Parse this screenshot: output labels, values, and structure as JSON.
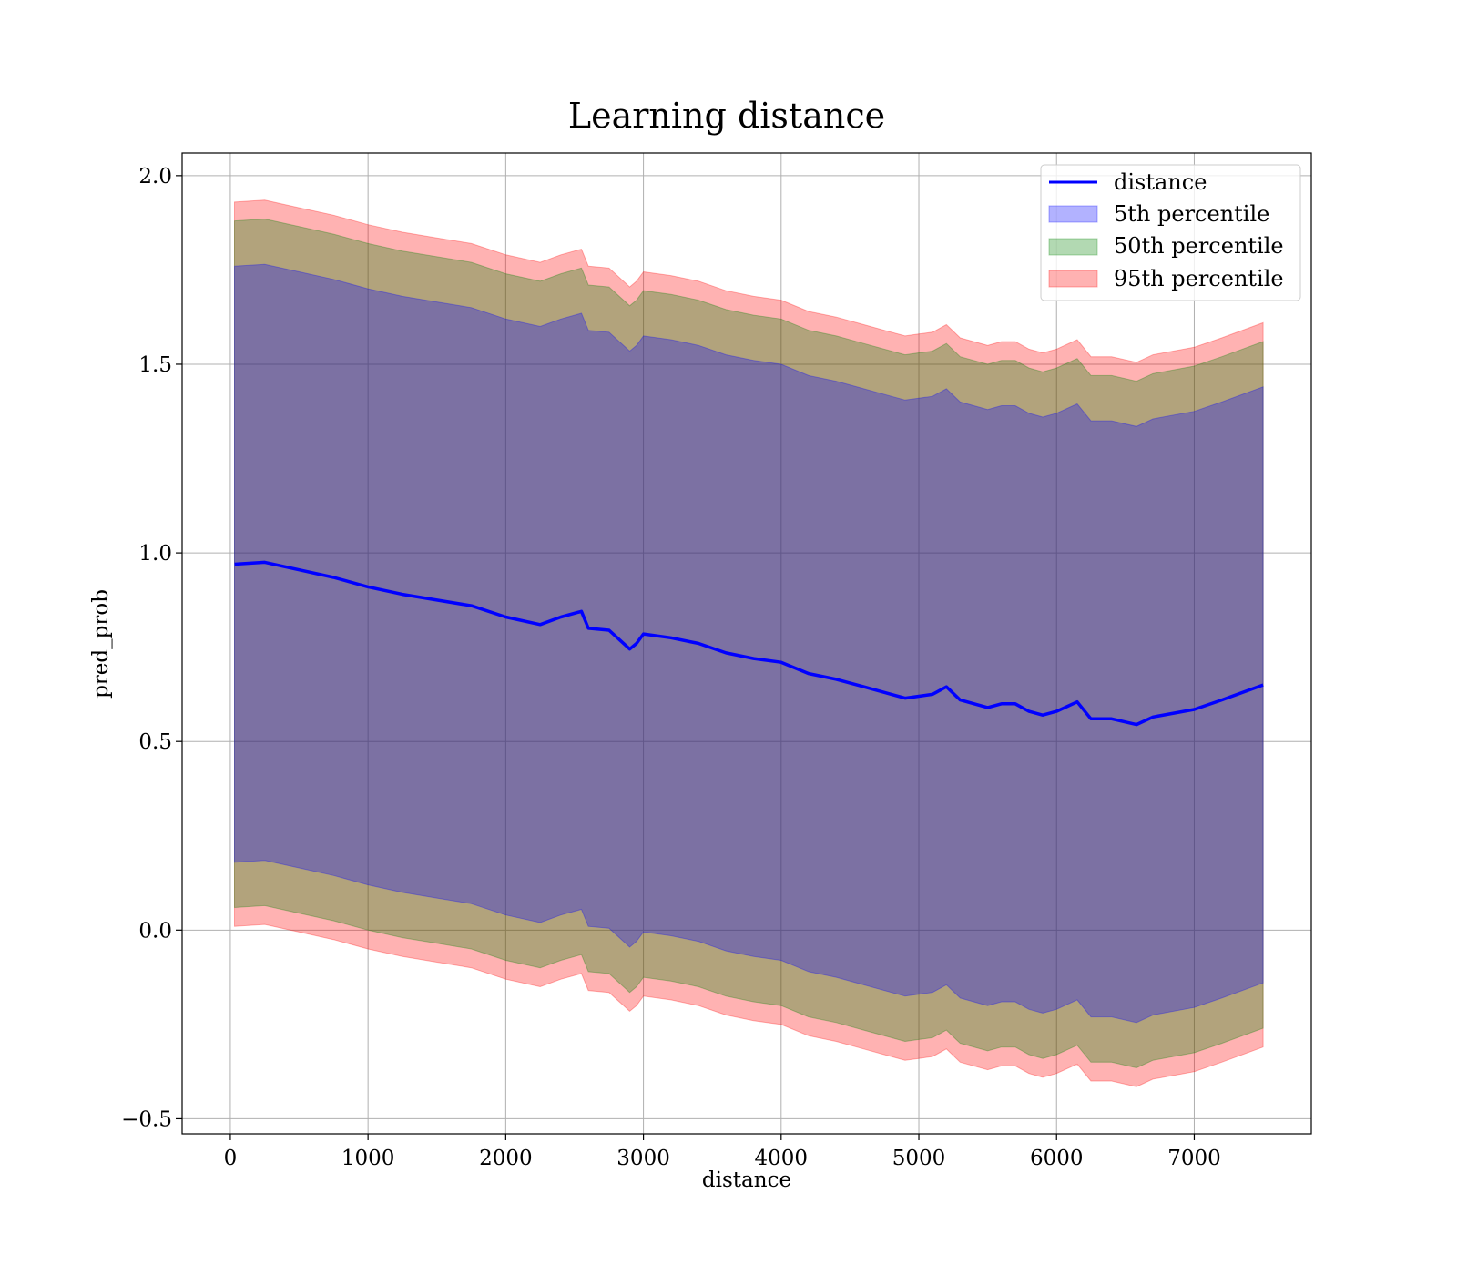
{
  "chart_data": {
    "type": "area",
    "title": "Learning distance",
    "xlabel": "distance",
    "ylabel": "pred_prob",
    "xlim": [
      -350,
      7850
    ],
    "ylim": [
      -0.54,
      2.06
    ],
    "xticks": [
      0,
      1000,
      2000,
      3000,
      4000,
      5000,
      6000,
      7000
    ],
    "yticks": [
      -0.5,
      0.0,
      0.5,
      1.0,
      1.5,
      2.0
    ],
    "ytick_labels": [
      "−0.5",
      "0.0",
      "0.5",
      "1.0",
      "1.5",
      "2.0"
    ],
    "grid": true,
    "legend_position": "top-right",
    "colors": {
      "line": "#0000ff",
      "band_5": "#0000ff",
      "band_50": "#008000",
      "band_95": "#ff0000",
      "band_alpha": 0.3
    },
    "x": [
      30,
      250,
      500,
      750,
      1000,
      1250,
      1500,
      1750,
      2000,
      2250,
      2400,
      2550,
      2600,
      2750,
      2900,
      2950,
      3000,
      3200,
      3400,
      3600,
      3800,
      4000,
      4200,
      4400,
      4600,
      4800,
      4900,
      5000,
      5100,
      5200,
      5300,
      5500,
      5600,
      5700,
      5800,
      5900,
      6000,
      6150,
      6250,
      6400,
      6580,
      6700,
      7000,
      7200,
      7500
    ],
    "series": [
      {
        "name": "distance",
        "kind": "line",
        "y": [
          0.97,
          0.975,
          0.955,
          0.935,
          0.91,
          0.89,
          0.875,
          0.86,
          0.83,
          0.81,
          0.83,
          0.845,
          0.8,
          0.795,
          0.745,
          0.76,
          0.785,
          0.775,
          0.76,
          0.735,
          0.72,
          0.71,
          0.68,
          0.665,
          0.645,
          0.625,
          0.615,
          0.62,
          0.625,
          0.645,
          0.61,
          0.59,
          0.6,
          0.6,
          0.58,
          0.57,
          0.58,
          0.605,
          0.56,
          0.56,
          0.545,
          0.565,
          0.585,
          0.61,
          0.65
        ]
      },
      {
        "name": "5th percentile",
        "kind": "band",
        "half_width": 0.79
      },
      {
        "name": "50th percentile",
        "kind": "band",
        "half_width": 0.91
      },
      {
        "name": "95th percentile",
        "kind": "band",
        "half_width": 0.96
      }
    ]
  }
}
